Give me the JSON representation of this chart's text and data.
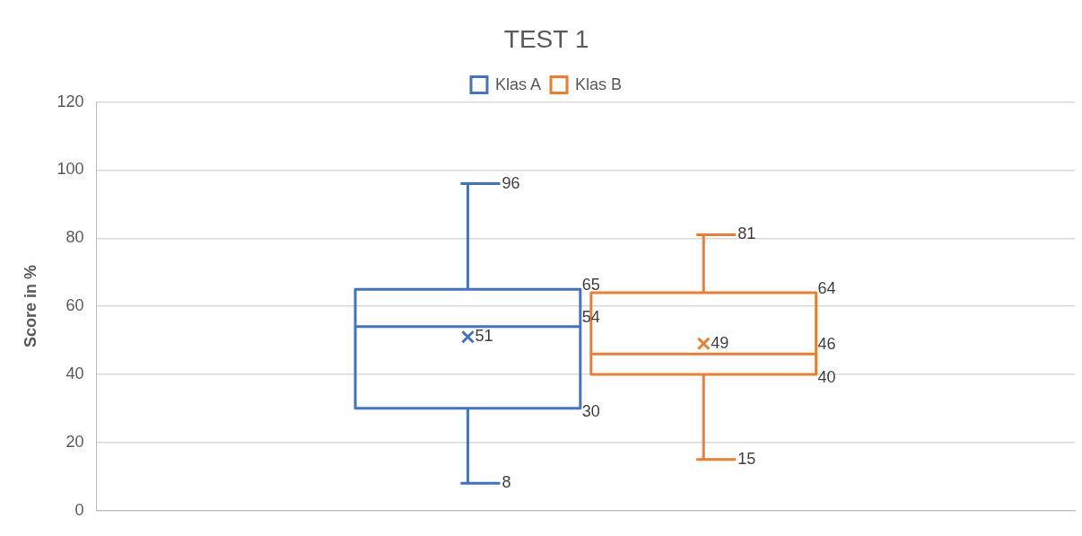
{
  "chart_data": {
    "type": "box",
    "title": "TEST 1",
    "ylabel": "Score in %",
    "categories": [
      null
    ],
    "series": [
      {
        "name": "Klas A",
        "color": "#4472c4",
        "boxes": [
          {
            "low": 8,
            "q1": 30,
            "median": 54,
            "q3": 65,
            "high": 96,
            "mean": 51
          }
        ]
      },
      {
        "name": "Klas B",
        "color": "#ed7d31",
        "boxes": [
          {
            "low": 15,
            "q1": 40,
            "median": 46,
            "q3": 64,
            "high": 81,
            "mean": 49
          }
        ]
      }
    ],
    "annotations": [
      "96",
      "65",
      "54",
      "51",
      "30",
      "8",
      "81",
      "64",
      "46",
      "49",
      "40",
      "15"
    ],
    "ylim": [
      0,
      120
    ],
    "yticks": [
      0,
      20,
      40,
      60,
      80,
      100,
      120
    ],
    "grid": "y",
    "legend": "top"
  }
}
